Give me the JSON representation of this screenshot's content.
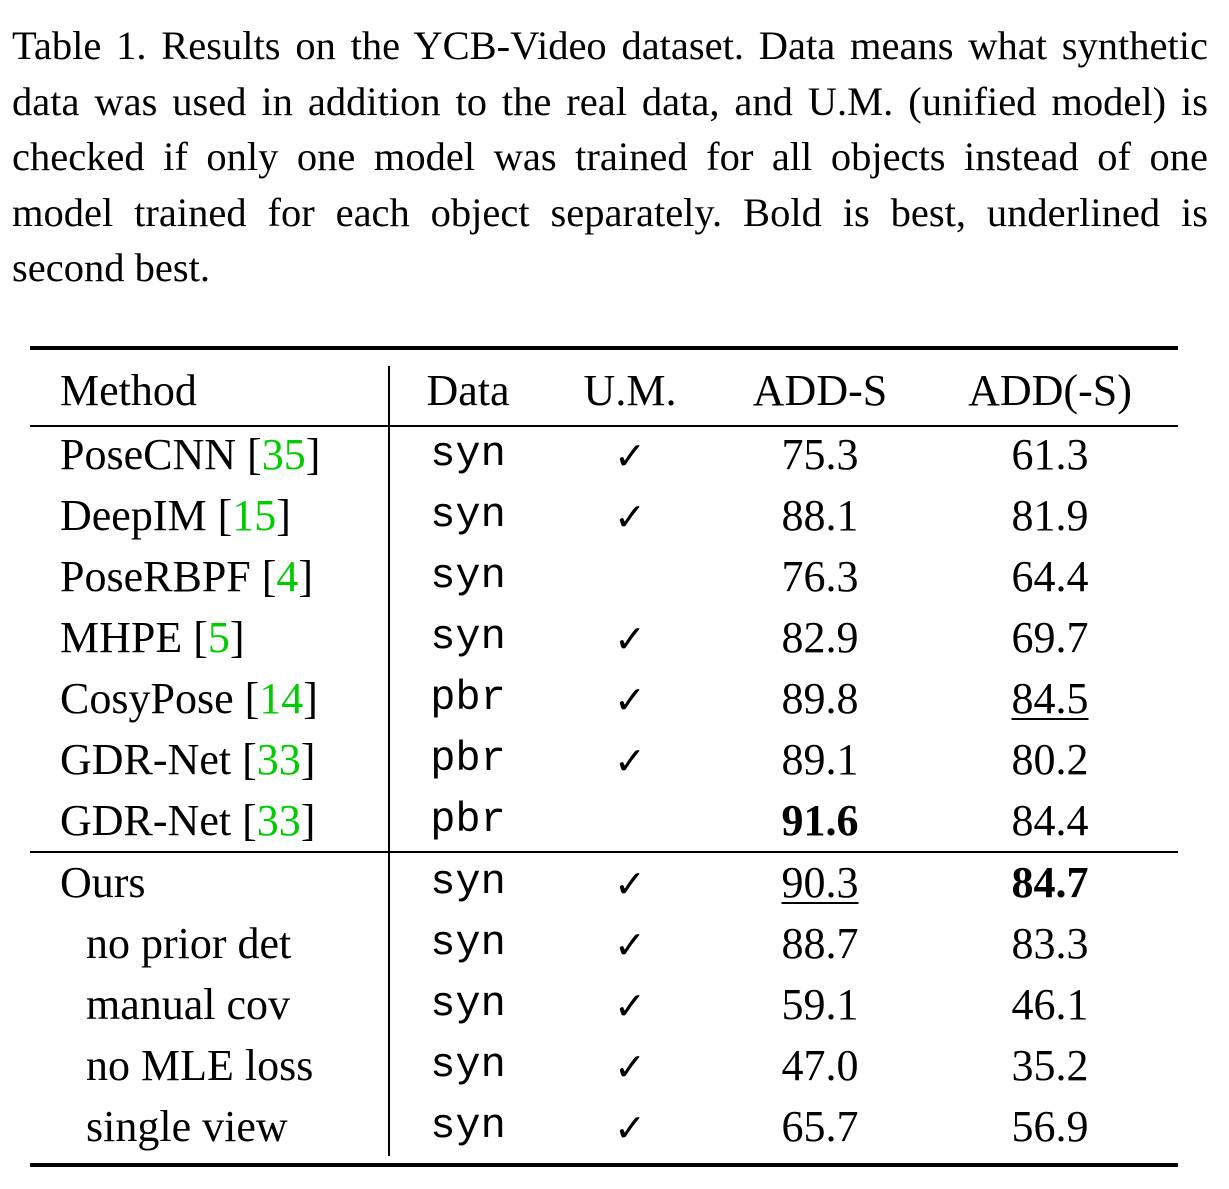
{
  "caption": "Table 1. Results on the YCB-Video dataset. Data means what synthetic data was used in addition to the real data, and U.M. (unified model) is checked if only one model was trained for all objects instead of one model trained for each object separately. Bold is best, underlined is second best.",
  "table": {
    "headers": {
      "method": "Method",
      "data": "Data",
      "um": "U.M.",
      "adds": "ADD-S",
      "add": "ADD(-S)"
    },
    "check_mark": "✓",
    "rows": [
      {
        "name": "PoseCNN [",
        "ref": "35",
        "close": "]",
        "data": "syn",
        "um": "✓",
        "adds": "75.3",
        "add": "61.3"
      },
      {
        "name": "DeepIM [",
        "ref": "15",
        "close": "]",
        "data": "syn",
        "um": "✓",
        "adds": "88.1",
        "add": "81.9"
      },
      {
        "name": "PoseRBPF [",
        "ref": "4",
        "close": "]",
        "data": "syn",
        "um": "",
        "adds": "76.3",
        "add": "64.4"
      },
      {
        "name": "MHPE [",
        "ref": "5",
        "close": "]",
        "data": "syn",
        "um": "✓",
        "adds": "82.9",
        "add": "69.7"
      },
      {
        "name": "CosyPose [",
        "ref": "14",
        "close": "]",
        "data": "pbr",
        "um": "✓",
        "adds": "89.8",
        "add": "84.5"
      },
      {
        "name": "GDR-Net [",
        "ref": "33",
        "close": "]",
        "data": "pbr",
        "um": "✓",
        "adds": "89.1",
        "add": "80.2"
      },
      {
        "name": "GDR-Net [",
        "ref": "33",
        "close": "]",
        "data": "pbr",
        "um": "",
        "adds": "91.6",
        "add": "84.4"
      }
    ],
    "ours_rows": [
      {
        "name": "Ours",
        "data": "syn",
        "um": "✓",
        "adds": "90.3",
        "add": "84.7"
      },
      {
        "name": "no prior det",
        "data": "syn",
        "um": "✓",
        "adds": "88.7",
        "add": "83.3"
      },
      {
        "name": "manual cov",
        "data": "syn",
        "um": "✓",
        "adds": "59.1",
        "add": "46.1"
      },
      {
        "name": "no MLE loss",
        "data": "syn",
        "um": "✓",
        "adds": "47.0",
        "add": "35.2"
      },
      {
        "name": "single view",
        "data": "syn",
        "um": "✓",
        "adds": "65.7",
        "add": "56.9"
      }
    ]
  }
}
